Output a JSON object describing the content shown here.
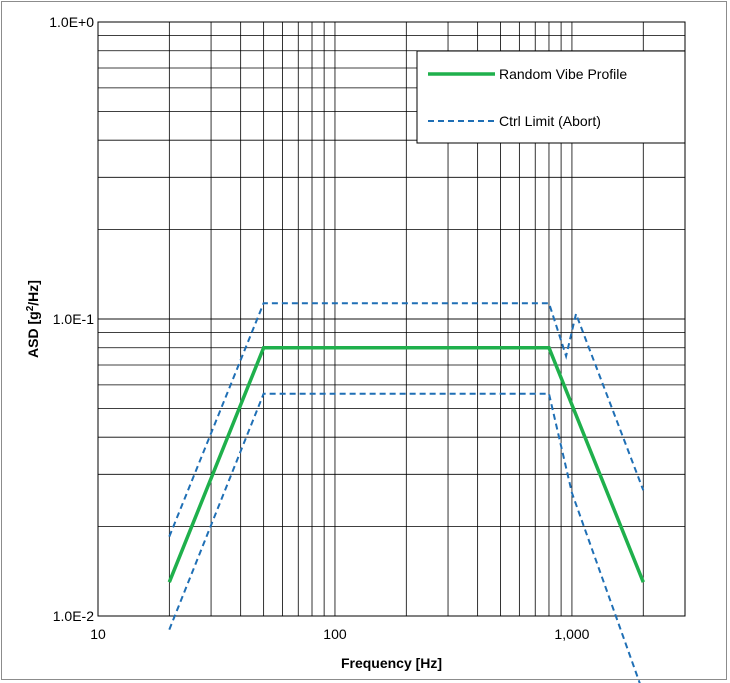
{
  "chart_data": {
    "type": "line",
    "xscale": "log",
    "yscale": "log",
    "xlim": [
      10,
      3000
    ],
    "ylim": [
      0.01,
      1.0
    ],
    "xlabel": "Frequency [Hz]",
    "ylabel_main": "ASD [g",
    "ylabel_sup": "2",
    "ylabel_end": "/Hz]",
    "x_ticks": [
      {
        "value": 10,
        "label": "10"
      },
      {
        "value": 100,
        "label": "100"
      },
      {
        "value": 1000,
        "label": "1,000"
      }
    ],
    "y_ticks": [
      {
        "value": 1.0,
        "label": "1.0E+0"
      },
      {
        "value": 0.1,
        "label": "1.0E-1"
      },
      {
        "value": 0.01,
        "label": "1.0E-2"
      }
    ],
    "grid": true,
    "legend_position": "top-right",
    "series": [
      {
        "name": "Random Vibe Profile",
        "style": "solid",
        "color": "#1fb04c",
        "points": [
          [
            20,
            0.013
          ],
          [
            50,
            0.08
          ],
          [
            800,
            0.08
          ],
          [
            2000,
            0.013
          ]
        ]
      },
      {
        "name": "Ctrl Limit (Abort)",
        "style": "dashed",
        "color": "#1f6fb5",
        "points": [
          [
            20,
            0.0185
          ],
          [
            50,
            0.113
          ],
          [
            800,
            0.113
          ],
          [
            945,
            0.075
          ],
          [
            1040,
            0.104
          ],
          [
            2000,
            0.0265
          ]
        ]
      },
      {
        "name": "",
        "style": "dashed",
        "color": "#1f6fb5",
        "points": [
          [
            20,
            0.009
          ],
          [
            50,
            0.056
          ],
          [
            800,
            0.056
          ],
          [
            1000,
            0.026
          ],
          [
            2000,
            0.0055
          ]
        ]
      }
    ]
  }
}
